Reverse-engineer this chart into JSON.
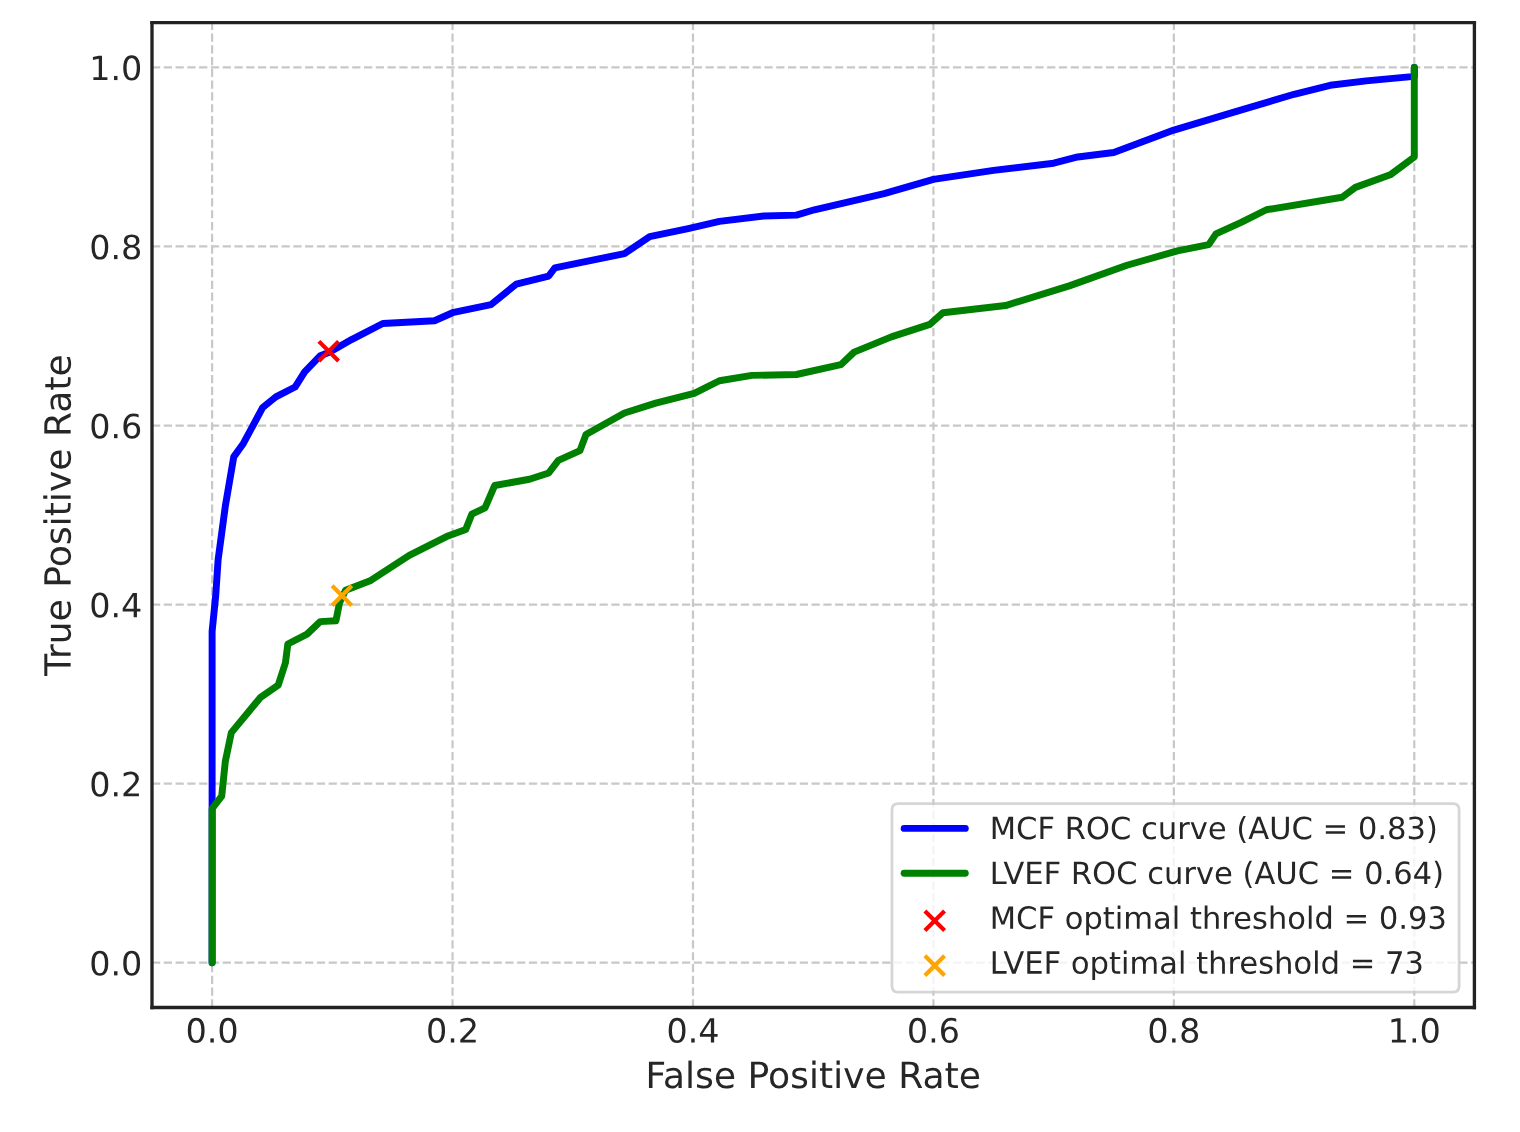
{
  "chart_data": {
    "type": "line",
    "xlabel": "False Positive Rate",
    "ylabel": "True Positive Rate",
    "xlim": [
      -0.05,
      1.05
    ],
    "ylim": [
      -0.05,
      1.05
    ],
    "xticks": [
      {
        "value": 0,
        "label": "0.0"
      },
      0.2,
      0.4,
      0.6,
      0.8,
      {
        "value": 1,
        "label": "1.0"
      }
    ],
    "yticks": [
      {
        "value": 0,
        "label": "0.0"
      },
      0.2,
      0.4,
      0.6,
      0.8,
      {
        "value": 1,
        "label": "1.0"
      }
    ],
    "grid": true,
    "legend": "bottom right",
    "line_style": "solid",
    "marker": "none",
    "series": [
      {
        "name": "MCF ROC curve (AUC = 0.83)",
        "color": "#0000ff",
        "x": [
          0,
          0,
          0,
          0.003,
          0.005,
          0.011,
          0.018,
          0.026,
          0.034,
          0.042,
          0.053,
          0.069,
          0.077,
          0.09,
          0.098,
          0.116,
          0.142,
          0.185,
          0.2,
          0.232,
          0.253,
          0.28,
          0.285,
          0.343,
          0.364,
          0.396,
          0.422,
          0.459,
          0.486,
          0.501,
          0.559,
          0.6,
          0.65,
          0.7,
          0.72,
          0.75,
          0.8,
          0.85,
          0.9,
          0.93,
          0.96,
          1.0,
          1.0
        ],
        "values": [
          0,
          0.17,
          0.37,
          0.41,
          0.45,
          0.51,
          0.565,
          0.58,
          0.6,
          0.62,
          0.632,
          0.643,
          0.66,
          0.678,
          0.682,
          0.696,
          0.714,
          0.717,
          0.726,
          0.735,
          0.758,
          0.767,
          0.776,
          0.792,
          0.811,
          0.82,
          0.828,
          0.834,
          0.835,
          0.841,
          0.859,
          0.875,
          0.885,
          0.893,
          0.9,
          0.905,
          0.93,
          0.95,
          0.97,
          0.98,
          0.985,
          0.99,
          1.0
        ]
      },
      {
        "name": "LVEF ROC curve (AUC = 0.64)",
        "color": "#008000",
        "x": [
          0,
          0,
          0.008,
          0.011,
          0.016,
          0.029,
          0.04,
          0.055,
          0.061,
          0.063,
          0.079,
          0.09,
          0.103,
          0.106,
          0.111,
          0.132,
          0.164,
          0.195,
          0.211,
          0.216,
          0.227,
          0.235,
          0.264,
          0.28,
          0.288,
          0.306,
          0.311,
          0.343,
          0.369,
          0.401,
          0.422,
          0.449,
          0.486,
          0.523,
          0.534,
          0.565,
          0.597,
          0.608,
          0.66,
          0.713,
          0.761,
          0.803,
          0.829,
          0.835,
          0.856,
          0.877,
          0.94,
          0.951,
          0.98,
          1.0,
          1.0
        ],
        "values": [
          0,
          0.172,
          0.186,
          0.225,
          0.257,
          0.278,
          0.296,
          0.31,
          0.335,
          0.356,
          0.367,
          0.381,
          0.382,
          0.402,
          0.416,
          0.427,
          0.455,
          0.476,
          0.484,
          0.501,
          0.508,
          0.533,
          0.54,
          0.547,
          0.561,
          0.572,
          0.59,
          0.614,
          0.625,
          0.636,
          0.65,
          0.656,
          0.657,
          0.668,
          0.682,
          0.699,
          0.713,
          0.726,
          0.734,
          0.756,
          0.779,
          0.795,
          0.802,
          0.814,
          0.827,
          0.841,
          0.855,
          0.866,
          0.88,
          0.9,
          1.0
        ]
      },
      {
        "name": "MCF optimal threshold = 0.93",
        "color": "#ff0000",
        "type": "scatter",
        "marker": "cross",
        "x": [
          0.097
        ],
        "values": [
          0.683
        ]
      },
      {
        "name": "LVEF optimal threshold = 73",
        "color": "#ffa500",
        "type": "scatter",
        "marker": "cross",
        "x": [
          0.108
        ],
        "values": [
          0.41
        ]
      }
    ]
  }
}
